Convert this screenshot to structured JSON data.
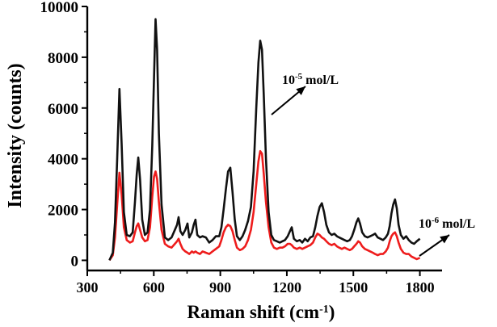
{
  "chart_data": {
    "type": "line",
    "xlabel": "Raman shift (cm",
    "xlabel_sup": "-1",
    "xlabel_tail": ")",
    "ylabel": "Intensity (counts)",
    "xlim": [
      300,
      1900
    ],
    "ylim": [
      -400,
      10000
    ],
    "xticks": [
      300,
      600,
      900,
      1200,
      1500,
      1800
    ],
    "yticks": [
      0,
      2000,
      4000,
      6000,
      8000,
      10000
    ],
    "grid": false,
    "legend": "none",
    "annotations": [
      {
        "base": "10",
        "exp": "-5",
        "unit": " mol/L",
        "series": 0
      },
      {
        "base": "10",
        "exp": "-6",
        "unit": " mol/L",
        "series": 1
      }
    ],
    "series": [
      {
        "color": "#111111",
        "points": [
          [
            400,
            0
          ],
          [
            415,
            300
          ],
          [
            425,
            1500
          ],
          [
            435,
            4000
          ],
          [
            445,
            6750
          ],
          [
            455,
            4600
          ],
          [
            465,
            1900
          ],
          [
            478,
            1000
          ],
          [
            492,
            950
          ],
          [
            505,
            1100
          ],
          [
            515,
            2300
          ],
          [
            523,
            3400
          ],
          [
            530,
            4050
          ],
          [
            538,
            3200
          ],
          [
            548,
            1600
          ],
          [
            560,
            1000
          ],
          [
            572,
            1100
          ],
          [
            583,
            2000
          ],
          [
            593,
            4500
          ],
          [
            601,
            7200
          ],
          [
            608,
            9500
          ],
          [
            615,
            8300
          ],
          [
            623,
            5000
          ],
          [
            635,
            2200
          ],
          [
            650,
            900
          ],
          [
            665,
            800
          ],
          [
            680,
            900
          ],
          [
            695,
            1200
          ],
          [
            705,
            1400
          ],
          [
            712,
            1700
          ],
          [
            720,
            1150
          ],
          [
            730,
            1000
          ],
          [
            742,
            1200
          ],
          [
            752,
            1450
          ],
          [
            760,
            900
          ],
          [
            772,
            1100
          ],
          [
            780,
            1400
          ],
          [
            788,
            1600
          ],
          [
            796,
            1000
          ],
          [
            808,
            900
          ],
          [
            820,
            950
          ],
          [
            835,
            900
          ],
          [
            850,
            700
          ],
          [
            865,
            800
          ],
          [
            880,
            950
          ],
          [
            895,
            950
          ],
          [
            905,
            1300
          ],
          [
            915,
            2000
          ],
          [
            925,
            2800
          ],
          [
            935,
            3500
          ],
          [
            945,
            3650
          ],
          [
            955,
            2700
          ],
          [
            965,
            1600
          ],
          [
            975,
            950
          ],
          [
            988,
            800
          ],
          [
            1000,
            950
          ],
          [
            1012,
            1200
          ],
          [
            1025,
            1550
          ],
          [
            1038,
            2100
          ],
          [
            1050,
            3500
          ],
          [
            1062,
            6000
          ],
          [
            1072,
            7800
          ],
          [
            1080,
            8650
          ],
          [
            1088,
            8300
          ],
          [
            1096,
            6500
          ],
          [
            1106,
            4000
          ],
          [
            1118,
            1900
          ],
          [
            1130,
            1000
          ],
          [
            1142,
            800
          ],
          [
            1155,
            750
          ],
          [
            1168,
            700
          ],
          [
            1180,
            750
          ],
          [
            1192,
            800
          ],
          [
            1204,
            950
          ],
          [
            1214,
            1150
          ],
          [
            1222,
            1300
          ],
          [
            1232,
            850
          ],
          [
            1245,
            750
          ],
          [
            1258,
            800
          ],
          [
            1270,
            700
          ],
          [
            1282,
            850
          ],
          [
            1294,
            750
          ],
          [
            1306,
            900
          ],
          [
            1318,
            950
          ],
          [
            1328,
            1300
          ],
          [
            1338,
            1750
          ],
          [
            1348,
            2100
          ],
          [
            1358,
            2250
          ],
          [
            1368,
            1900
          ],
          [
            1378,
            1400
          ],
          [
            1390,
            1100
          ],
          [
            1402,
            1000
          ],
          [
            1414,
            1050
          ],
          [
            1426,
            950
          ],
          [
            1436,
            900
          ],
          [
            1448,
            850
          ],
          [
            1460,
            800
          ],
          [
            1472,
            750
          ],
          [
            1484,
            800
          ],
          [
            1494,
            950
          ],
          [
            1504,
            1200
          ],
          [
            1514,
            1500
          ],
          [
            1522,
            1650
          ],
          [
            1530,
            1450
          ],
          [
            1540,
            1100
          ],
          [
            1552,
            950
          ],
          [
            1564,
            900
          ],
          [
            1576,
            950
          ],
          [
            1588,
            1000
          ],
          [
            1598,
            1050
          ],
          [
            1610,
            900
          ],
          [
            1622,
            850
          ],
          [
            1634,
            800
          ],
          [
            1646,
            900
          ],
          [
            1656,
            1050
          ],
          [
            1664,
            1350
          ],
          [
            1672,
            1850
          ],
          [
            1680,
            2200
          ],
          [
            1688,
            2400
          ],
          [
            1696,
            2050
          ],
          [
            1704,
            1400
          ],
          [
            1714,
            1000
          ],
          [
            1726,
            850
          ],
          [
            1738,
            950
          ],
          [
            1750,
            800
          ],
          [
            1762,
            700
          ],
          [
            1774,
            650
          ],
          [
            1786,
            750
          ],
          [
            1800,
            850
          ]
        ]
      },
      {
        "color": "#ee1c1c",
        "points": [
          [
            400,
            0
          ],
          [
            415,
            200
          ],
          [
            425,
            900
          ],
          [
            435,
            2200
          ],
          [
            445,
            3450
          ],
          [
            455,
            2600
          ],
          [
            465,
            1300
          ],
          [
            478,
            800
          ],
          [
            492,
            700
          ],
          [
            505,
            750
          ],
          [
            515,
            1100
          ],
          [
            523,
            1350
          ],
          [
            530,
            1450
          ],
          [
            538,
            1200
          ],
          [
            548,
            900
          ],
          [
            560,
            750
          ],
          [
            572,
            800
          ],
          [
            583,
            1300
          ],
          [
            593,
            2500
          ],
          [
            601,
            3300
          ],
          [
            608,
            3500
          ],
          [
            615,
            3200
          ],
          [
            623,
            2300
          ],
          [
            635,
            1200
          ],
          [
            650,
            650
          ],
          [
            665,
            550
          ],
          [
            680,
            500
          ],
          [
            695,
            650
          ],
          [
            705,
            750
          ],
          [
            712,
            850
          ],
          [
            720,
            650
          ],
          [
            730,
            450
          ],
          [
            742,
            350
          ],
          [
            752,
            300
          ],
          [
            760,
            250
          ],
          [
            772,
            350
          ],
          [
            780,
            300
          ],
          [
            788,
            350
          ],
          [
            796,
            300
          ],
          [
            808,
            250
          ],
          [
            820,
            350
          ],
          [
            835,
            300
          ],
          [
            850,
            250
          ],
          [
            865,
            350
          ],
          [
            880,
            450
          ],
          [
            895,
            550
          ],
          [
            905,
            800
          ],
          [
            915,
            1100
          ],
          [
            925,
            1300
          ],
          [
            935,
            1400
          ],
          [
            945,
            1350
          ],
          [
            955,
            1150
          ],
          [
            965,
            800
          ],
          [
            975,
            500
          ],
          [
            988,
            400
          ],
          [
            1000,
            450
          ],
          [
            1012,
            550
          ],
          [
            1025,
            800
          ],
          [
            1038,
            1200
          ],
          [
            1050,
            1900
          ],
          [
            1062,
            3000
          ],
          [
            1072,
            3900
          ],
          [
            1080,
            4300
          ],
          [
            1088,
            4200
          ],
          [
            1096,
            3400
          ],
          [
            1106,
            2300
          ],
          [
            1118,
            1300
          ],
          [
            1130,
            700
          ],
          [
            1142,
            500
          ],
          [
            1155,
            450
          ],
          [
            1168,
            500
          ],
          [
            1180,
            500
          ],
          [
            1192,
            550
          ],
          [
            1204,
            650
          ],
          [
            1214,
            650
          ],
          [
            1222,
            600
          ],
          [
            1232,
            500
          ],
          [
            1245,
            450
          ],
          [
            1258,
            500
          ],
          [
            1270,
            450
          ],
          [
            1282,
            500
          ],
          [
            1294,
            550
          ],
          [
            1306,
            600
          ],
          [
            1318,
            700
          ],
          [
            1328,
            900
          ],
          [
            1338,
            1050
          ],
          [
            1348,
            1000
          ],
          [
            1358,
            900
          ],
          [
            1368,
            850
          ],
          [
            1378,
            750
          ],
          [
            1390,
            650
          ],
          [
            1402,
            600
          ],
          [
            1414,
            650
          ],
          [
            1426,
            550
          ],
          [
            1436,
            500
          ],
          [
            1448,
            450
          ],
          [
            1460,
            500
          ],
          [
            1472,
            450
          ],
          [
            1484,
            400
          ],
          [
            1494,
            450
          ],
          [
            1504,
            550
          ],
          [
            1514,
            650
          ],
          [
            1522,
            750
          ],
          [
            1530,
            700
          ],
          [
            1540,
            550
          ],
          [
            1552,
            450
          ],
          [
            1564,
            400
          ],
          [
            1576,
            350
          ],
          [
            1588,
            300
          ],
          [
            1598,
            250
          ],
          [
            1610,
            200
          ],
          [
            1622,
            250
          ],
          [
            1634,
            250
          ],
          [
            1646,
            350
          ],
          [
            1656,
            500
          ],
          [
            1664,
            750
          ],
          [
            1672,
            950
          ],
          [
            1680,
            1050
          ],
          [
            1688,
            1100
          ],
          [
            1696,
            950
          ],
          [
            1704,
            700
          ],
          [
            1714,
            450
          ],
          [
            1726,
            300
          ],
          [
            1738,
            250
          ],
          [
            1750,
            250
          ],
          [
            1762,
            150
          ],
          [
            1774,
            100
          ],
          [
            1786,
            50
          ],
          [
            1800,
            100
          ]
        ]
      }
    ]
  }
}
